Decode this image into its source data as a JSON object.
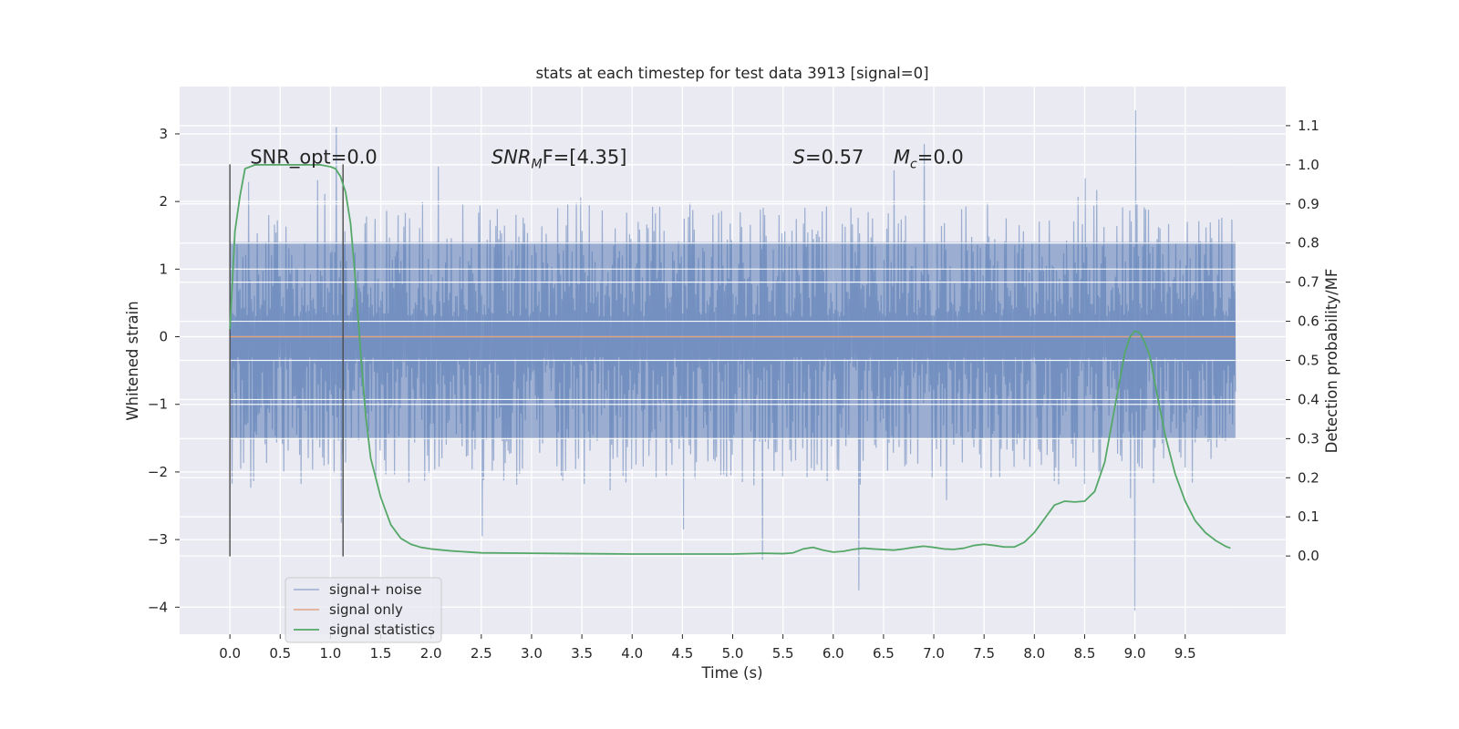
{
  "chart_data": {
    "type": "line",
    "title": "stats at each timestep for test data 3913 [signal=0]",
    "xlabel": "Time (s)",
    "ylabel": "Whitened strain",
    "ylabel_right": "Detection probability/MF",
    "xlim": [
      -0.5,
      10.5
    ],
    "ylim": [
      -4.4,
      3.7
    ],
    "ylim_right": [
      -0.2,
      1.2
    ],
    "xticks": [
      "0.0",
      "0.5",
      "1.0",
      "1.5",
      "2.0",
      "2.5",
      "3.0",
      "3.5",
      "4.0",
      "4.5",
      "5.0",
      "5.5",
      "6.0",
      "6.5",
      "7.0",
      "7.5",
      "8.0",
      "8.5",
      "9.0",
      "9.5"
    ],
    "yticks": [
      "3",
      "2",
      "1",
      "0",
      "−1",
      "−2",
      "−3",
      "−4"
    ],
    "yticks_right": [
      "0.0",
      "0.1",
      "0.2",
      "0.3",
      "0.4",
      "0.5",
      "0.6",
      "0.7",
      "0.8",
      "0.9",
      "1.0",
      "1.1"
    ],
    "grid": true,
    "legend_position": "lower-left",
    "colors": {
      "background": "#eaeaf2",
      "grid": "#ffffff",
      "noise": "#4c72b0",
      "signal": "#dd8452",
      "stats": "#55a868",
      "markers": "#4d4d4d"
    },
    "series": [
      {
        "name": "signal+ noise",
        "axis": "left",
        "style": "dense noise trace",
        "x_range": [
          0.0,
          10.0
        ],
        "sample_count": 1400,
        "core_band": [
          -1.5,
          1.4
        ],
        "peaks": [
          [
            1.05,
            3.1
          ],
          [
            9.0,
            3.35
          ],
          [
            6.9,
            2.85
          ],
          [
            6.25,
            -3.75
          ],
          [
            9.0,
            -4.05
          ],
          [
            5.3,
            -3.3
          ],
          [
            2.5,
            -2.95
          ],
          [
            4.5,
            -2.85
          ],
          [
            1.1,
            -2.75
          ]
        ]
      },
      {
        "name": "signal only",
        "axis": "left",
        "x": [
          0.0,
          10.0
        ],
        "y": [
          0.0,
          0.0
        ]
      },
      {
        "name": "signal statistics",
        "axis": "right",
        "x": [
          0.0,
          0.05,
          0.1,
          0.15,
          0.25,
          0.4,
          0.6,
          0.8,
          0.9,
          1.0,
          1.05,
          1.1,
          1.15,
          1.2,
          1.25,
          1.3,
          1.35,
          1.4,
          1.5,
          1.6,
          1.7,
          1.8,
          1.9,
          2.0,
          2.2,
          2.5,
          3.0,
          3.5,
          4.0,
          4.5,
          5.0,
          5.3,
          5.5,
          5.6,
          5.7,
          5.8,
          5.9,
          6.0,
          6.1,
          6.2,
          6.3,
          6.4,
          6.6,
          6.7,
          6.8,
          6.9,
          7.0,
          7.1,
          7.2,
          7.3,
          7.4,
          7.5,
          7.6,
          7.7,
          7.8,
          7.9,
          8.0,
          8.1,
          8.2,
          8.3,
          8.4,
          8.5,
          8.6,
          8.7,
          8.8,
          8.9,
          8.95,
          9.0,
          9.05,
          9.1,
          9.15,
          9.2,
          9.3,
          9.4,
          9.5,
          9.6,
          9.7,
          9.8,
          9.9,
          9.95
        ],
        "y": [
          0.58,
          0.83,
          0.92,
          0.99,
          1.0,
          1.0,
          1.0,
          1.0,
          1.0,
          0.995,
          0.99,
          0.97,
          0.93,
          0.85,
          0.7,
          0.52,
          0.36,
          0.25,
          0.15,
          0.08,
          0.045,
          0.03,
          0.022,
          0.018,
          0.013,
          0.008,
          0.007,
          0.006,
          0.005,
          0.005,
          0.005,
          0.007,
          0.006,
          0.008,
          0.018,
          0.022,
          0.015,
          0.01,
          0.012,
          0.017,
          0.02,
          0.018,
          0.015,
          0.018,
          0.022,
          0.025,
          0.022,
          0.018,
          0.017,
          0.02,
          0.027,
          0.03,
          0.027,
          0.023,
          0.023,
          0.035,
          0.06,
          0.095,
          0.13,
          0.14,
          0.138,
          0.14,
          0.165,
          0.24,
          0.38,
          0.52,
          0.56,
          0.575,
          0.57,
          0.545,
          0.51,
          0.44,
          0.31,
          0.21,
          0.14,
          0.09,
          0.06,
          0.04,
          0.025,
          0.02
        ]
      }
    ],
    "vertical_markers": [
      {
        "x": 0.0,
        "y": [
          -3.25,
          2.55
        ]
      },
      {
        "x": 1.125,
        "y": [
          -3.25,
          2.55
        ]
      }
    ],
    "annotations": [
      {
        "plain": "SNR_opt=0.0",
        "x": 0.2,
        "y": 2.55
      },
      {
        "main": "SNR",
        "sub": "M",
        "rest": "F=[4.35]",
        "x": 2.6,
        "y": 2.55
      },
      {
        "main": "S",
        "rest": "=0.57",
        "x": 5.6,
        "y": 2.55
      },
      {
        "main": "M",
        "sub": "c",
        "rest": "=0.0",
        "x": 6.6,
        "y": 2.55
      }
    ]
  }
}
